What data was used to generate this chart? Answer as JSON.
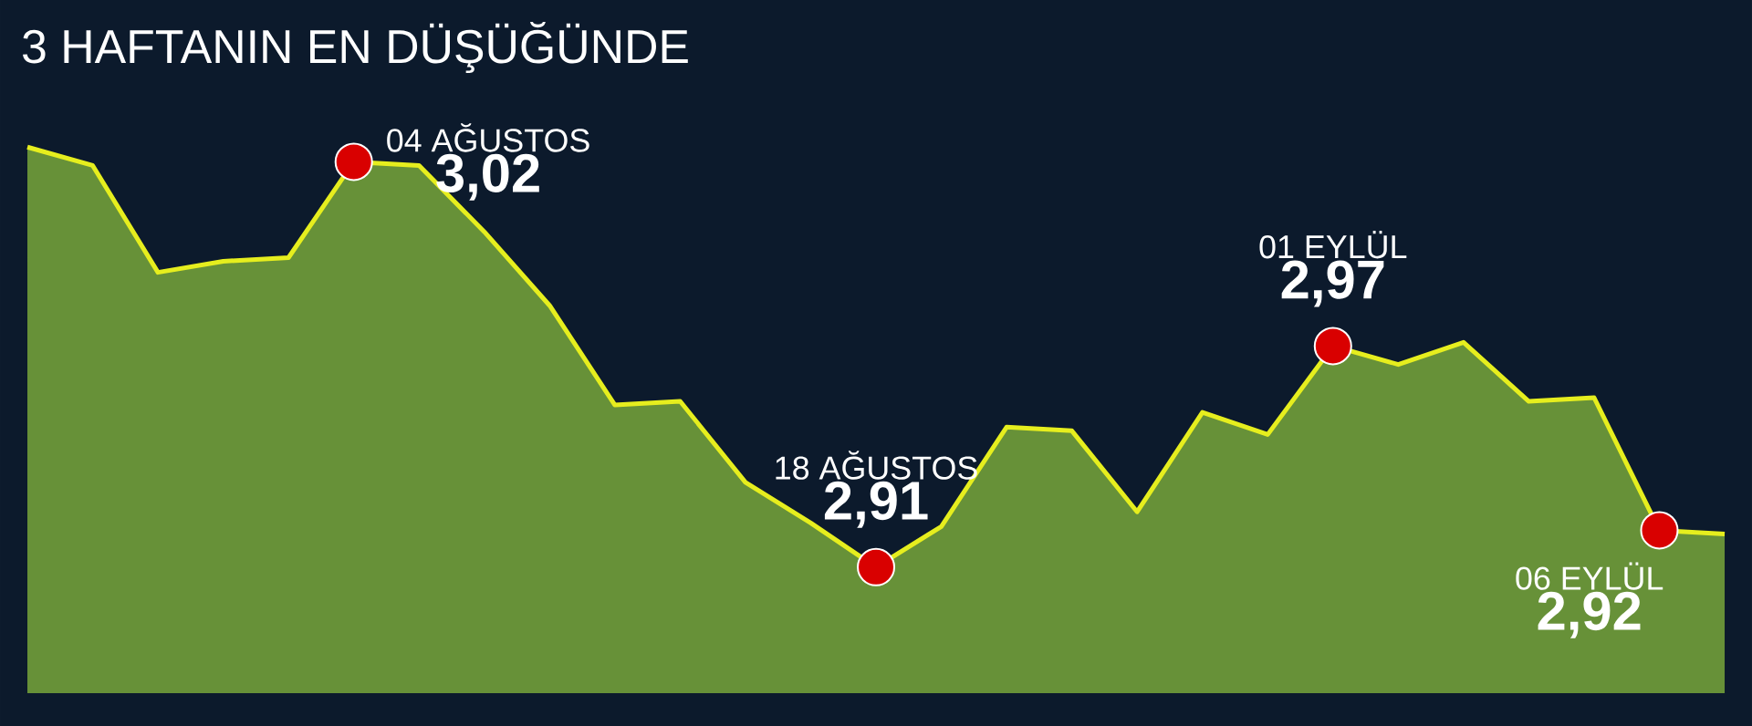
{
  "chart_data": {
    "type": "area",
    "title": "3 HAFTANIN EN DÜŞÜĞÜNDE",
    "categories": [
      null,
      null,
      null,
      null,
      null,
      null,
      null,
      null,
      null,
      null,
      null,
      null,
      null,
      null,
      null,
      null,
      null,
      null,
      null,
      null,
      null,
      null,
      null,
      null,
      null,
      null,
      null
    ],
    "series": [
      {
        "color": "#e6ee1e",
        "values": [
          3.024,
          3.019,
          2.99,
          2.993,
          2.994,
          3.02,
          3.019,
          3.001,
          2.981,
          2.954,
          2.955,
          2.933,
          2.922,
          2.91,
          2.921,
          2.948,
          2.947,
          2.925,
          2.952,
          2.946,
          2.97,
          2.965,
          2.971,
          2.955,
          2.956,
          2.92,
          2.919
        ],
        "value_labels": [
          null,
          null,
          null,
          null,
          null,
          "3,02",
          null,
          null,
          null,
          null,
          null,
          null,
          null,
          "2,91",
          null,
          null,
          null,
          null,
          null,
          null,
          "2,97",
          null,
          null,
          null,
          null,
          "2,92",
          null
        ]
      }
    ],
    "annotations": [
      "04 AĞUSTOS",
      "18 AĞUSTOS",
      "01 EYLÜL",
      "06 EYLÜL"
    ]
  }
}
